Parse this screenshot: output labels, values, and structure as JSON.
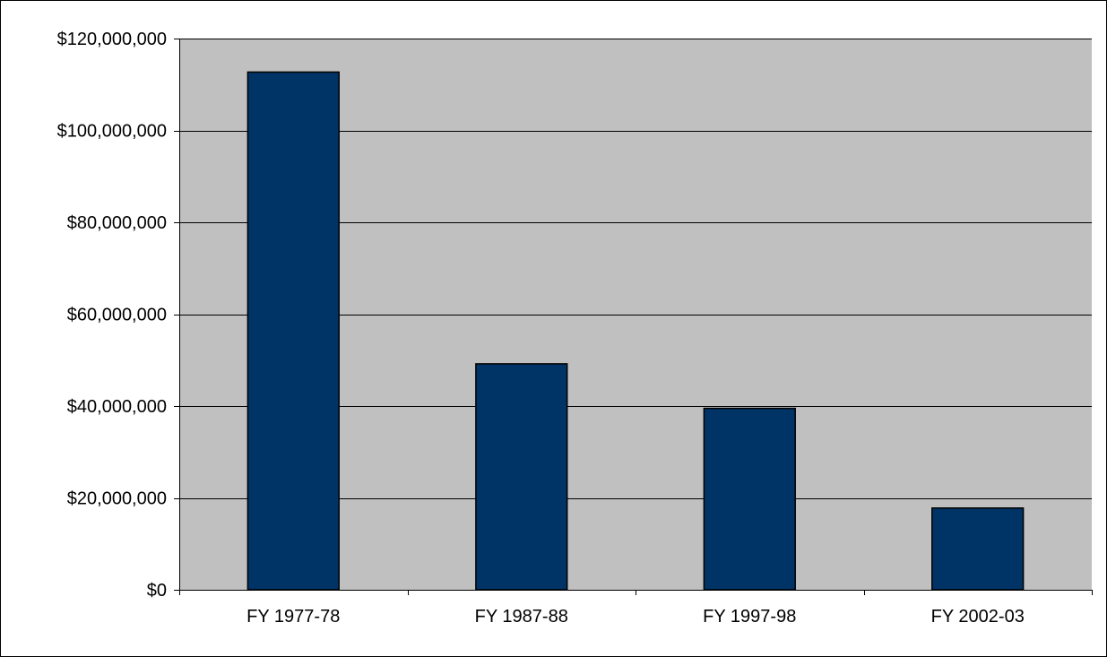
{
  "chart_data": {
    "type": "bar",
    "title": "",
    "xlabel": "",
    "ylabel": "",
    "categories": [
      "FY 1977-78",
      "FY 1987-88",
      "FY 1997-98",
      "FY 2002-03"
    ],
    "values": [
      112700000,
      49200000,
      39500000,
      17800000
    ],
    "ylim": [
      0,
      120000000
    ],
    "yticks": [
      0,
      20000000,
      40000000,
      60000000,
      80000000,
      100000000,
      120000000
    ],
    "ytick_labels": [
      "$0",
      "$20,000,000",
      "$40,000,000",
      "$60,000,000",
      "$80,000,000",
      "$100,000,000",
      "$120,000,000"
    ],
    "grid": true,
    "legend": "none",
    "colors": {
      "bar_fill": "#003366",
      "bar_stroke": "#000000",
      "plot_background": "#c0c0c0",
      "gridline": "#000000",
      "frame_background": "#ffffff"
    }
  }
}
